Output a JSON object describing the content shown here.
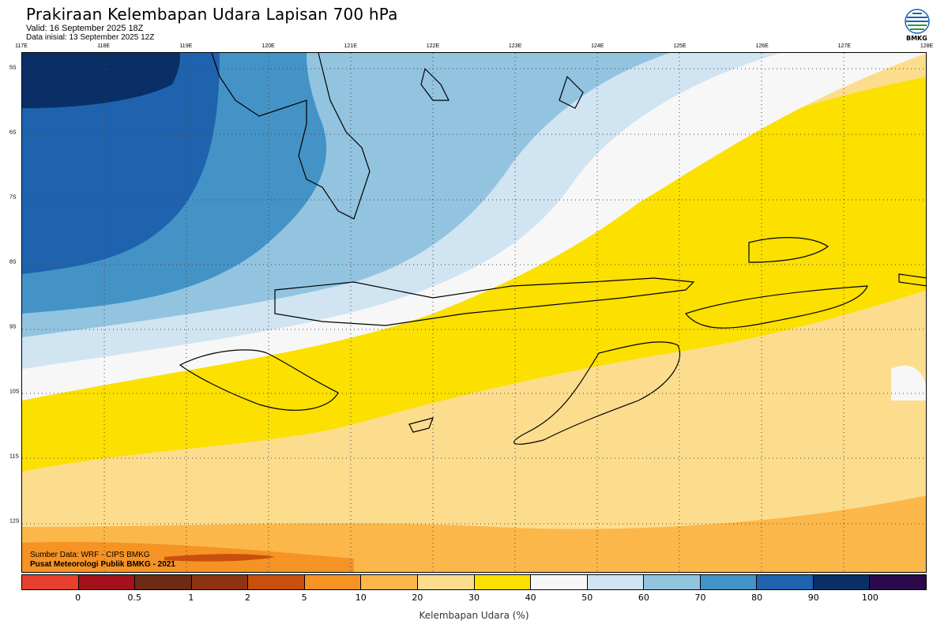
{
  "header": {
    "title": "Prakiraan Kelembapan Udara Lapisan 700 hPa",
    "valid": "Valid: 16 September 2025 18Z",
    "initial": "Data inisial: 13 September 2025 12Z"
  },
  "logo": {
    "icon": "bmkg-logo-icon",
    "text": "BMKG"
  },
  "axes": {
    "longitudes": [
      "117E",
      "118E",
      "119E",
      "120E",
      "121E",
      "122E",
      "123E",
      "124E",
      "125E",
      "126E",
      "127E",
      "128E"
    ],
    "latitudes": [
      "5S",
      "6S",
      "7S",
      "8S",
      "9S",
      "10S",
      "11S",
      "12S"
    ]
  },
  "credits": {
    "source": "Sumber Data: WRF - CIPS BMKG",
    "publisher": "Pusat Meteorologi Publik BMKG - 2021"
  },
  "colorbar": {
    "colors": [
      "#e8402f",
      "#a3121a",
      "#6e2a12",
      "#8e3312",
      "#c8500c",
      "#f59324",
      "#fbb74a",
      "#fcdd8e",
      "#fbe000",
      "#f7f7f7",
      "#d0e4f2",
      "#92c4e0",
      "#4493c6",
      "#1f63ae",
      "#0a2f66",
      "#2a0a4a"
    ],
    "ticks": [
      "0",
      "0.5",
      "1",
      "2",
      "5",
      "10",
      "20",
      "30",
      "40",
      "50",
      "60",
      "70",
      "80",
      "90",
      "100"
    ],
    "label": "Kelembapan Udara (%)"
  }
}
